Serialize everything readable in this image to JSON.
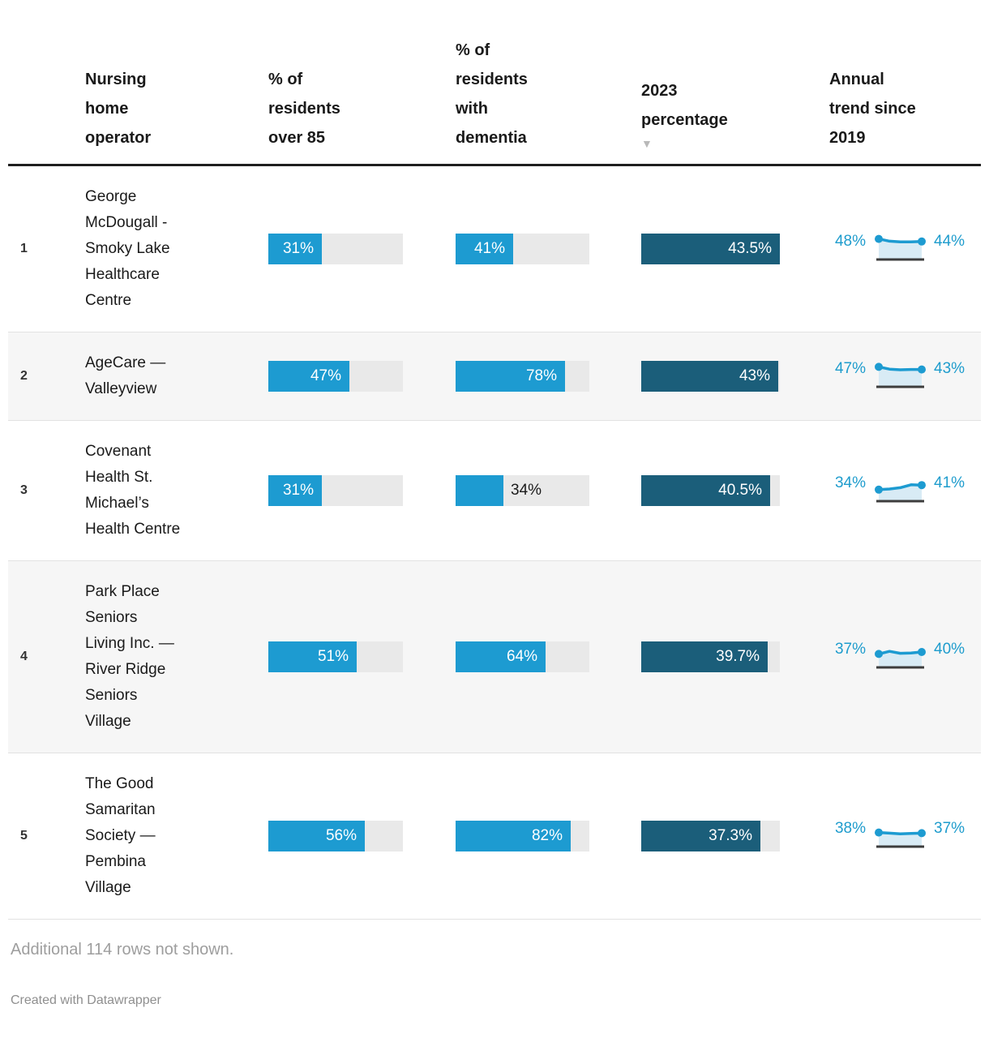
{
  "colors": {
    "bar_blue": "#1d9bd1",
    "bar_dark_teal": "#1b5e7a",
    "bar_track_gray": "#e9e9e9",
    "trend_blue": "#1e9ccd",
    "spark_area": "#d8ebf5",
    "spark_baseline": "#3d3d3d",
    "alt_row_bg": "#f6f6f6",
    "header_rule": "#1f1f1f"
  },
  "header": {
    "columns": [
      {
        "label": "Nursing home operator"
      },
      {
        "label": "% of residents over 85"
      },
      {
        "label": "% of residents with dementia"
      },
      {
        "label": "2023 percentage",
        "sort_arrow": "▼"
      },
      {
        "label": "Annual trend since 2019"
      }
    ]
  },
  "chart_data": {
    "type": "table",
    "columns": [
      "Nursing home operator",
      "% of residents over 85",
      "% of residents with dementia",
      "2023 percentage",
      "Annual trend since 2019"
    ],
    "sorted_by": "2023 percentage",
    "sort_direction": "descending",
    "axis_max": {
      "over85": 78,
      "dementia": 95,
      "pct2023": 43.5
    },
    "rows": [
      {
        "rank": "1",
        "operator": "George McDougall - Smoky Lake Healthcare Centre",
        "over85": {
          "value": 31,
          "label": "31%",
          "label_inside": true
        },
        "dementia": {
          "value": 41,
          "label": "41%",
          "label_inside": true
        },
        "pct2023": {
          "value": 43.5,
          "label": "43.5%",
          "label_inside": true
        },
        "trend": {
          "start_label": "48%",
          "end_label": "44%",
          "series": [
            48,
            44.5,
            43.5,
            43.5,
            44
          ]
        }
      },
      {
        "rank": "2",
        "operator": "AgeCare — Valleyview",
        "over85": {
          "value": 47,
          "label": "47%",
          "label_inside": true
        },
        "dementia": {
          "value": 78,
          "label": "78%",
          "label_inside": true
        },
        "pct2023": {
          "value": 43,
          "label": "43%",
          "label_inside": true
        },
        "trend": {
          "start_label": "47%",
          "end_label": "43%",
          "series": [
            47,
            43.5,
            42.5,
            43,
            43
          ]
        }
      },
      {
        "rank": "3",
        "operator": "Covenant Health St. Michael’s Health Centre",
        "over85": {
          "value": 31,
          "label": "31%",
          "label_inside": true
        },
        "dementia": {
          "value": 34,
          "label": "34%",
          "label_inside": false
        },
        "pct2023": {
          "value": 40.5,
          "label": "40.5%",
          "label_inside": true
        },
        "trend": {
          "start_label": "34%",
          "end_label": "41%",
          "series": [
            34,
            35,
            37,
            41.5,
            41
          ]
        }
      },
      {
        "rank": "4",
        "operator": "Park Place Seniors Living Inc. — River Ridge Seniors Village",
        "over85": {
          "value": 51,
          "label": "51%",
          "label_inside": true
        },
        "dementia": {
          "value": 64,
          "label": "64%",
          "label_inside": true
        },
        "pct2023": {
          "value": 39.7,
          "label": "39.7%",
          "label_inside": true
        },
        "trend": {
          "start_label": "37%",
          "end_label": "40%",
          "series": [
            37,
            41,
            38,
            38.5,
            40
          ]
        }
      },
      {
        "rank": "5",
        "operator": "The Good Samaritan Society — Pembina Village",
        "over85": {
          "value": 56,
          "label": "56%",
          "label_inside": true
        },
        "dementia": {
          "value": 82,
          "label": "82%",
          "label_inside": true
        },
        "pct2023": {
          "value": 37.3,
          "label": "37.3%",
          "label_inside": true
        },
        "trend": {
          "start_label": "38%",
          "end_label": "37%",
          "series": [
            38,
            37,
            36,
            36.5,
            37
          ]
        }
      }
    ]
  },
  "footer": {
    "note": "Additional 114 rows not shown.",
    "credit": "Created with Datawrapper"
  }
}
